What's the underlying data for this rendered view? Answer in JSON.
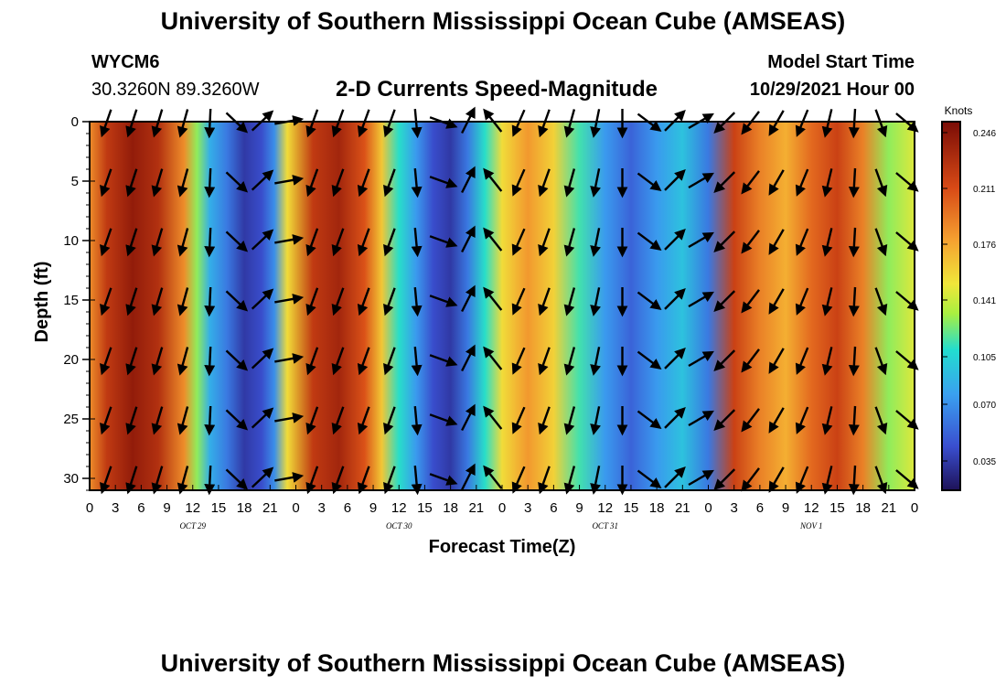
{
  "header": {
    "title": "University of Southern Mississippi Ocean Cube (AMSEAS)",
    "title_repeat": "University of Southern Mississippi Ocean Cube (AMSEAS)",
    "station_id": "WYCM6",
    "station_coords": "30.3260N  89.3260W",
    "product": "2-D Currents Speed-Magnitude",
    "start_label": "Model Start Time",
    "start_value": "10/29/2021 Hour 00"
  },
  "chart_data": {
    "type": "heatmap",
    "title": "2-D Currents Speed-Magnitude",
    "xlabel": "Forecast Time(Z)",
    "ylabel": "Depth (ft)",
    "colorbar_label": "Knots",
    "colorbar_ticks": [
      "0.246",
      "0.211",
      "0.176",
      "0.141",
      "0.105",
      "0.070",
      "0.035"
    ],
    "colorbar_values": [
      0.246,
      0.211,
      0.176,
      0.141,
      0.105,
      0.07,
      0.035
    ],
    "crange": [
      0.0,
      0.26
    ],
    "xlim": [
      0,
      96
    ],
    "ylim": [
      31,
      0
    ],
    "x_tick_labels": [
      "0",
      "3",
      "6",
      "9",
      "12",
      "15",
      "18",
      "21",
      "0",
      "3",
      "6",
      "9",
      "12",
      "15",
      "18",
      "21",
      "0",
      "3",
      "6",
      "9",
      "12",
      "15",
      "18",
      "21",
      "0",
      "3",
      "6",
      "9",
      "12",
      "15",
      "18",
      "21",
      "0"
    ],
    "y_ticks": [
      0,
      5,
      10,
      15,
      20,
      25,
      30
    ],
    "y_tick_labels": [
      "0",
      "5",
      "10",
      "15",
      "20",
      "25",
      "30"
    ],
    "day_labels": [
      {
        "hour": 12,
        "label": "OCT 29"
      },
      {
        "hour": 36,
        "label": "OCT 30"
      },
      {
        "hour": 60,
        "label": "OCT 31"
      },
      {
        "hour": 84,
        "label": "NOV 1"
      }
    ],
    "speed_profile": [
      {
        "hour": 0,
        "speed": 0.185
      },
      {
        "hour": 2,
        "speed": 0.225
      },
      {
        "hour": 5,
        "speed": 0.248
      },
      {
        "hour": 8,
        "speed": 0.232
      },
      {
        "hour": 11,
        "speed": 0.185
      },
      {
        "hour": 12.5,
        "speed": 0.12
      },
      {
        "hour": 14,
        "speed": 0.075
      },
      {
        "hour": 16,
        "speed": 0.05
      },
      {
        "hour": 18,
        "speed": 0.02
      },
      {
        "hour": 20,
        "speed": 0.03
      },
      {
        "hour": 21.5,
        "speed": 0.06
      },
      {
        "hour": 23,
        "speed": 0.15
      },
      {
        "hour": 26,
        "speed": 0.225
      },
      {
        "hour": 29,
        "speed": 0.24
      },
      {
        "hour": 32,
        "speed": 0.21
      },
      {
        "hour": 34,
        "speed": 0.16
      },
      {
        "hour": 36,
        "speed": 0.1
      },
      {
        "hour": 38,
        "speed": 0.065
      },
      {
        "hour": 40,
        "speed": 0.03
      },
      {
        "hour": 42,
        "speed": 0.02
      },
      {
        "hour": 44,
        "speed": 0.05
      },
      {
        "hour": 46,
        "speed": 0.1
      },
      {
        "hour": 48,
        "speed": 0.15
      },
      {
        "hour": 51,
        "speed": 0.18
      },
      {
        "hour": 54,
        "speed": 0.155
      },
      {
        "hour": 57,
        "speed": 0.105
      },
      {
        "hour": 60,
        "speed": 0.065
      },
      {
        "hour": 63,
        "speed": 0.04
      },
      {
        "hour": 66,
        "speed": 0.065
      },
      {
        "hour": 69,
        "speed": 0.085
      },
      {
        "hour": 72,
        "speed": 0.05
      },
      {
        "hour": 75,
        "speed": 0.22
      },
      {
        "hour": 78,
        "speed": 0.19
      },
      {
        "hour": 81,
        "speed": 0.17
      },
      {
        "hour": 84,
        "speed": 0.2
      },
      {
        "hour": 87,
        "speed": 0.22
      },
      {
        "hour": 90,
        "speed": 0.19
      },
      {
        "hour": 93,
        "speed": 0.12
      },
      {
        "hour": 96,
        "speed": 0.14
      }
    ],
    "arrow_rows_depth_ft": [
      0,
      5,
      10,
      15,
      20,
      25,
      30
    ],
    "arrow_hours": [
      2,
      5,
      8,
      11,
      14,
      17,
      20,
      23,
      26,
      29,
      32,
      35,
      38,
      41,
      44,
      47,
      50,
      53,
      56,
      59,
      62,
      65,
      68,
      71,
      74,
      77,
      80,
      83,
      86,
      89,
      92,
      95
    ],
    "arrow_direction_keyframes_deg": [
      {
        "hour": 0,
        "dir": 200
      },
      {
        "hour": 12,
        "dir": 195
      },
      {
        "hour": 16,
        "dir": 170
      },
      {
        "hour": 19,
        "dir": 60
      },
      {
        "hour": 22,
        "dir": 20
      },
      {
        "hour": 25,
        "dir": 200
      },
      {
        "hour": 36,
        "dir": 200
      },
      {
        "hour": 40,
        "dir": 150
      },
      {
        "hour": 43,
        "dir": 30
      },
      {
        "hour": 46,
        "dir": 20
      },
      {
        "hour": 49,
        "dir": 205
      },
      {
        "hour": 60,
        "dir": 190
      },
      {
        "hour": 64,
        "dir": 170
      },
      {
        "hour": 67,
        "dir": 40
      },
      {
        "hour": 71,
        "dir": 60
      },
      {
        "hour": 74,
        "dir": 225
      },
      {
        "hour": 84,
        "dir": 200
      },
      {
        "hour": 90,
        "dir": 180
      },
      {
        "hour": 96,
        "dir": 120
      }
    ]
  }
}
